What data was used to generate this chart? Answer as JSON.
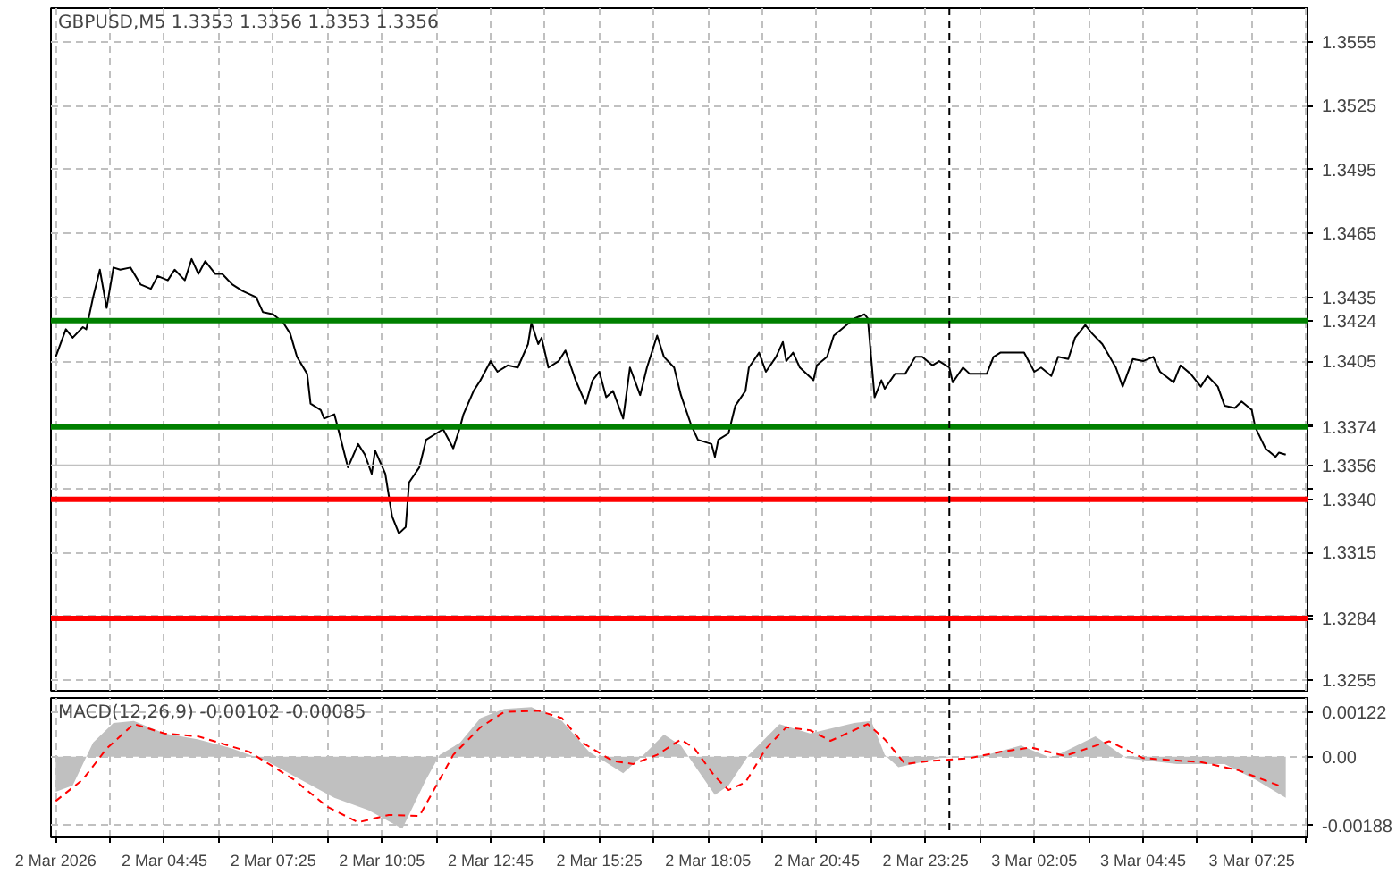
{
  "chart_data": [
    {
      "type": "line",
      "title": "GBPUSD,M5 1.3353 1.3356 1.3353 1.3356",
      "tick_labels": "y",
      "grid": true,
      "xlim": [
        "2026-03-02T01:58",
        "2026-03-03T08:47"
      ],
      "ylim": [
        1.325,
        1.3571
      ],
      "xticks": [
        {
          "value": "2026-03-02T02:05",
          "label": null
        },
        {
          "value": "2026-03-02T03:25",
          "label": null
        },
        {
          "value": "2026-03-02T04:45",
          "label": null
        },
        {
          "value": "2026-03-02T06:05",
          "label": null
        },
        {
          "value": "2026-03-02T07:25",
          "label": null
        },
        {
          "value": "2026-03-02T08:45",
          "label": null
        },
        {
          "value": "2026-03-02T10:05",
          "label": null
        },
        {
          "value": "2026-03-02T11:25",
          "label": null
        },
        {
          "value": "2026-03-02T12:45",
          "label": null
        },
        {
          "value": "2026-03-02T14:05",
          "label": null
        },
        {
          "value": "2026-03-02T15:25",
          "label": null
        },
        {
          "value": "2026-03-02T16:45",
          "label": null
        },
        {
          "value": "2026-03-02T18:05",
          "label": null
        },
        {
          "value": "2026-03-02T19:25",
          "label": null
        },
        {
          "value": "2026-03-02T20:45",
          "label": null
        },
        {
          "value": "2026-03-02T22:05",
          "label": null
        },
        {
          "value": "2026-03-02T23:25",
          "label": null
        },
        {
          "value": "2026-03-03T00:45",
          "label": null
        },
        {
          "value": "2026-03-03T02:05",
          "label": null
        },
        {
          "value": "2026-03-03T03:25",
          "label": null
        },
        {
          "value": "2026-03-03T04:45",
          "label": null
        },
        {
          "value": "2026-03-03T06:05",
          "label": null
        },
        {
          "value": "2026-03-03T07:25",
          "label": null
        },
        {
          "value": "2026-03-03T08:45",
          "label": null
        }
      ],
      "yticks": [
        {
          "value": 1.3555,
          "label": "1.3555"
        },
        {
          "value": 1.3525,
          "label": "1.3525"
        },
        {
          "value": 1.3495,
          "label": "1.3495"
        },
        {
          "value": 1.3465,
          "label": "1.3465"
        },
        {
          "value": 1.3435,
          "label": "1.3435"
        },
        {
          "value": 1.3405,
          "label": "1.3405"
        },
        {
          "value": 1.3375,
          "label": null
        },
        {
          "value": 1.3345,
          "label": null
        },
        {
          "value": 1.3315,
          "label": "1.3315"
        },
        {
          "value": 1.3285,
          "label": null
        },
        {
          "value": 1.3255,
          "label": "1.3255"
        }
      ],
      "ref_lines": [
        {
          "axis": "y",
          "value": 1.3424,
          "label": "1.3424",
          "color": "#008000",
          "line_style": "solid"
        },
        {
          "axis": "y",
          "value": 1.3374,
          "label": "1.3374",
          "color": "#008000",
          "line_style": "solid"
        },
        {
          "axis": "y",
          "value": 1.3356,
          "label": "1.3356",
          "color": "#c0c0c0",
          "line_style": "solid"
        },
        {
          "axis": "y",
          "value": 1.334,
          "label": "1.3340",
          "color": "#ff0000",
          "line_style": "solid"
        },
        {
          "axis": "y",
          "value": 1.3284,
          "label": "1.3284",
          "color": "#ff0000",
          "line_style": "solid"
        },
        {
          "axis": "x",
          "value": "2026-03-03T00:00",
          "label": null,
          "color": "#000000",
          "line_style": "dashed"
        }
      ],
      "series": [
        {
          "color": "#000000",
          "line_style": "solid",
          "x": [
            "2026-03-02T02:05",
            "2026-03-02T02:20",
            "2026-03-02T02:30",
            "2026-03-02T02:45",
            "2026-03-02T02:50",
            "2026-03-02T03:00",
            "2026-03-02T03:10",
            "2026-03-02T03:20",
            "2026-03-02T03:30",
            "2026-03-02T03:40",
            "2026-03-02T03:55",
            "2026-03-02T04:10",
            "2026-03-02T04:25",
            "2026-03-02T04:35",
            "2026-03-02T04:50",
            "2026-03-02T05:00",
            "2026-03-02T05:15",
            "2026-03-02T05:25",
            "2026-03-02T05:35",
            "2026-03-02T05:45",
            "2026-03-02T06:00",
            "2026-03-02T06:10",
            "2026-03-02T06:25",
            "2026-03-02T06:40",
            "2026-03-02T07:00",
            "2026-03-02T07:10",
            "2026-03-02T07:25",
            "2026-03-02T07:40",
            "2026-03-02T07:50",
            "2026-03-02T08:00",
            "2026-03-02T08:15",
            "2026-03-02T08:20",
            "2026-03-02T08:35",
            "2026-03-02T08:40",
            "2026-03-02T08:55",
            "2026-03-02T09:00",
            "2026-03-02T09:15",
            "2026-03-02T09:30",
            "2026-03-02T09:40",
            "2026-03-02T09:50",
            "2026-03-02T09:55",
            "2026-03-02T10:10",
            "2026-03-02T10:20",
            "2026-03-02T10:30",
            "2026-03-02T10:40",
            "2026-03-02T10:45",
            "2026-03-02T11:00",
            "2026-03-02T11:10",
            "2026-03-02T11:25",
            "2026-03-02T11:35",
            "2026-03-02T11:50",
            "2026-03-02T12:00",
            "2026-03-02T12:05",
            "2026-03-02T12:20",
            "2026-03-02T12:30",
            "2026-03-02T12:45",
            "2026-03-02T12:55",
            "2026-03-02T13:10",
            "2026-03-02T13:25",
            "2026-03-02T13:40",
            "2026-03-02T13:45",
            "2026-03-02T13:55",
            "2026-03-02T14:00",
            "2026-03-02T14:10",
            "2026-03-02T14:25",
            "2026-03-02T14:35",
            "2026-03-02T14:50",
            "2026-03-02T15:05",
            "2026-03-02T15:15",
            "2026-03-02T15:25",
            "2026-03-02T15:35",
            "2026-03-02T15:45",
            "2026-03-02T16:00",
            "2026-03-02T16:10",
            "2026-03-02T16:25",
            "2026-03-02T16:35",
            "2026-03-02T16:50",
            "2026-03-02T17:00",
            "2026-03-02T17:15",
            "2026-03-02T17:25",
            "2026-03-02T17:40",
            "2026-03-02T17:50",
            "2026-03-02T18:10",
            "2026-03-02T18:15",
            "2026-03-02T18:20",
            "2026-03-02T18:35",
            "2026-03-02T18:45",
            "2026-03-02T19:00",
            "2026-03-02T19:05",
            "2026-03-02T19:20",
            "2026-03-02T19:30",
            "2026-03-02T19:45",
            "2026-03-02T19:55",
            "2026-03-02T20:00",
            "2026-03-02T20:10",
            "2026-03-02T20:20",
            "2026-03-02T20:40",
            "2026-03-02T20:45",
            "2026-03-02T21:00",
            "2026-03-02T21:10",
            "2026-03-02T21:25",
            "2026-03-02T21:40",
            "2026-03-02T21:55",
            "2026-03-02T22:00",
            "2026-03-02T22:10",
            "2026-03-02T22:20",
            "2026-03-02T22:25",
            "2026-03-02T22:40",
            "2026-03-02T22:55",
            "2026-03-02T23:10",
            "2026-03-02T23:20",
            "2026-03-02T23:35",
            "2026-03-02T23:45",
            "2026-03-03T00:00",
            "2026-03-03T00:05",
            "2026-03-03T00:20",
            "2026-03-03T00:30",
            "2026-03-03T00:55",
            "2026-03-03T01:05",
            "2026-03-03T01:15",
            "2026-03-03T01:50",
            "2026-03-03T02:05",
            "2026-03-03T02:15",
            "2026-03-03T02:30",
            "2026-03-03T02:40",
            "2026-03-03T02:55",
            "2026-03-03T03:05",
            "2026-03-03T03:20",
            "2026-03-03T03:30",
            "2026-03-03T03:45",
            "2026-03-03T04:05",
            "2026-03-03T04:15",
            "2026-03-03T04:30",
            "2026-03-03T04:45",
            "2026-03-03T05:00",
            "2026-03-03T05:10",
            "2026-03-03T05:30",
            "2026-03-03T05:40",
            "2026-03-03T05:55",
            "2026-03-03T06:10",
            "2026-03-03T06:20",
            "2026-03-03T06:35",
            "2026-03-03T06:45",
            "2026-03-03T07:00",
            "2026-03-03T07:10",
            "2026-03-03T07:25",
            "2026-03-03T07:30",
            "2026-03-03T07:45",
            "2026-03-03T08:00",
            "2026-03-03T08:05",
            "2026-03-03T08:15"
          ],
          "values": [
            1.3407,
            1.342,
            1.3416,
            1.3421,
            1.342,
            1.3435,
            1.3448,
            1.343,
            1.3449,
            1.3448,
            1.3449,
            1.3441,
            1.3439,
            1.3445,
            1.3443,
            1.3448,
            1.3443,
            1.3453,
            1.3446,
            1.3452,
            1.3446,
            1.3446,
            1.3441,
            1.3438,
            1.3435,
            1.3428,
            1.3427,
            1.3423,
            1.3418,
            1.3407,
            1.3399,
            1.3385,
            1.3382,
            1.3378,
            1.338,
            1.3374,
            1.3355,
            1.3366,
            1.3361,
            1.3352,
            1.3363,
            1.3352,
            1.3332,
            1.3324,
            1.3327,
            1.3348,
            1.3355,
            1.3368,
            1.3371,
            1.3373,
            1.3364,
            1.3374,
            1.338,
            1.3391,
            1.3396,
            1.3405,
            1.34,
            1.3403,
            1.3402,
            1.3413,
            1.3423,
            1.3413,
            1.3416,
            1.3402,
            1.3405,
            1.341,
            1.3396,
            1.3385,
            1.3396,
            1.34,
            1.3388,
            1.3391,
            1.3378,
            1.3402,
            1.3389,
            1.3402,
            1.3417,
            1.3407,
            1.3402,
            1.3389,
            1.3375,
            1.3368,
            1.3366,
            1.336,
            1.3368,
            1.3371,
            1.3384,
            1.3391,
            1.3402,
            1.3409,
            1.34,
            1.3407,
            1.3414,
            1.3405,
            1.3409,
            1.3402,
            1.3396,
            1.3403,
            1.3407,
            1.3417,
            1.3421,
            1.3425,
            1.3427,
            1.3425,
            1.3388,
            1.3396,
            1.3392,
            1.3399,
            1.3399,
            1.3407,
            1.3407,
            1.3403,
            1.3405,
            1.3402,
            1.3395,
            1.3402,
            1.3399,
            1.3399,
            1.3407,
            1.3409,
            1.3409,
            1.34,
            1.3402,
            1.3398,
            1.3407,
            1.3406,
            1.3416,
            1.3422,
            1.3418,
            1.3413,
            1.3402,
            1.3393,
            1.3406,
            1.3405,
            1.3407,
            1.34,
            1.3395,
            1.3403,
            1.3399,
            1.3393,
            1.3398,
            1.3393,
            1.3384,
            1.3383,
            1.3386,
            1.3382,
            1.3374,
            1.3364,
            1.336,
            1.3362,
            1.3361
          ]
        }
      ]
    },
    {
      "type": "area",
      "title": "MACD(12,26,9) -0.00102 -0.00085",
      "grid": true,
      "xlim": [
        "2026-03-02T01:58",
        "2026-03-03T08:47"
      ],
      "ylim": [
        -0.0022,
        0.0016
      ],
      "xticks": [
        {
          "value": "2026-03-02T02:05",
          "label": "2 Mar 2026"
        },
        {
          "value": "2026-03-02T03:25",
          "label": null
        },
        {
          "value": "2026-03-02T04:45",
          "label": "2 Mar 04:45"
        },
        {
          "value": "2026-03-02T06:05",
          "label": null
        },
        {
          "value": "2026-03-02T07:25",
          "label": "2 Mar 07:25"
        },
        {
          "value": "2026-03-02T08:45",
          "label": null
        },
        {
          "value": "2026-03-02T10:05",
          "label": "2 Mar 10:05"
        },
        {
          "value": "2026-03-02T11:25",
          "label": null
        },
        {
          "value": "2026-03-02T12:45",
          "label": "2 Mar 12:45"
        },
        {
          "value": "2026-03-02T14:05",
          "label": null
        },
        {
          "value": "2026-03-02T15:25",
          "label": "2 Mar 15:25"
        },
        {
          "value": "2026-03-02T16:45",
          "label": null
        },
        {
          "value": "2026-03-02T18:05",
          "label": "2 Mar 18:05"
        },
        {
          "value": "2026-03-02T19:25",
          "label": null
        },
        {
          "value": "2026-03-02T20:45",
          "label": "2 Mar 20:45"
        },
        {
          "value": "2026-03-02T22:05",
          "label": null
        },
        {
          "value": "2026-03-02T23:25",
          "label": "2 Mar 23:25"
        },
        {
          "value": "2026-03-03T00:45",
          "label": null
        },
        {
          "value": "2026-03-03T02:05",
          "label": "3 Mar 02:05"
        },
        {
          "value": "2026-03-03T03:25",
          "label": null
        },
        {
          "value": "2026-03-03T04:45",
          "label": "3 Mar 04:45"
        },
        {
          "value": "2026-03-03T06:05",
          "label": null
        },
        {
          "value": "2026-03-03T07:25",
          "label": "3 Mar 07:25"
        },
        {
          "value": "2026-03-03T08:45",
          "label": null
        }
      ],
      "yticks": [
        {
          "value": 0.00122,
          "label": "0.00122"
        },
        {
          "value": 0,
          "label": "0.00"
        },
        {
          "value": -0.00188,
          "label": "-0.00188"
        }
      ],
      "ref_lines": [
        {
          "axis": "x",
          "value": "2026-03-03T00:00",
          "label": null,
          "color": "#000000",
          "line_style": "dashed"
        }
      ],
      "series": [
        {
          "color": "#c0c0c0",
          "x": [
            "2026-03-02T02:05",
            "2026-03-02T02:30",
            "2026-03-02T03:00",
            "2026-03-02T03:30",
            "2026-03-02T04:00",
            "2026-03-02T04:45",
            "2026-03-02T05:35",
            "2026-03-02T06:25",
            "2026-03-02T07:15",
            "2026-03-02T08:05",
            "2026-03-02T08:55",
            "2026-03-02T09:45",
            "2026-03-02T10:35",
            "2026-03-02T11:10",
            "2026-03-02T11:30",
            "2026-03-02T12:00",
            "2026-03-02T12:30",
            "2026-03-02T13:05",
            "2026-03-02T13:45",
            "2026-03-02T14:30",
            "2026-03-02T15:10",
            "2026-03-02T16:00",
            "2026-03-02T16:30",
            "2026-03-02T17:00",
            "2026-03-02T17:25",
            "2026-03-02T18:15",
            "2026-03-02T18:35",
            "2026-03-02T19:05",
            "2026-03-02T19:50",
            "2026-03-02T20:35",
            "2026-03-02T21:40",
            "2026-03-02T22:05",
            "2026-03-02T22:25",
            "2026-03-02T22:45",
            "2026-03-02T23:45",
            "2026-03-03T00:55",
            "2026-03-03T01:45",
            "2026-03-03T02:30",
            "2026-03-03T03:35",
            "2026-03-03T04:20",
            "2026-03-03T05:35",
            "2026-03-03T06:45",
            "2026-03-03T07:30",
            "2026-03-03T08:15"
          ],
          "values": [
            -0.00096,
            -0.00079,
            0.00038,
            0.00092,
            0.00097,
            0.00063,
            0.00047,
            0.00022,
            -0.00012,
            -0.00062,
            -0.00112,
            -0.00146,
            -0.00196,
            -0.00062,
            5e-05,
            0.00038,
            0.00105,
            0.0013,
            0.00135,
            0.00097,
            0.00013,
            -0.00045,
            5e-05,
            0.0006,
            0.0003,
            -0.00104,
            -0.00079,
            5e-05,
            0.00089,
            0.00063,
            0.00092,
            0.00097,
            5e-05,
            -0.00029,
            -4e-05,
            5e-05,
            0.0003,
            -4e-05,
            0.00055,
            -4e-05,
            -0.0002,
            -0.0002,
            -0.00062,
            -0.00112
          ]
        },
        {
          "type": "line",
          "color": "#ff0000",
          "line_style": "dashed",
          "x": [
            "2026-03-02T02:05",
            "2026-03-02T02:45",
            "2026-03-02T03:20",
            "2026-03-02T04:00",
            "2026-03-02T04:45",
            "2026-03-02T05:35",
            "2026-03-02T06:50",
            "2026-03-02T07:55",
            "2026-03-02T08:45",
            "2026-03-02T09:30",
            "2026-03-02T10:15",
            "2026-03-02T11:00",
            "2026-03-02T11:25",
            "2026-03-02T11:50",
            "2026-03-02T12:30",
            "2026-03-02T13:05",
            "2026-03-02T13:55",
            "2026-03-02T14:30",
            "2026-03-02T15:00",
            "2026-03-02T15:45",
            "2026-03-02T16:15",
            "2026-03-02T16:50",
            "2026-03-02T17:25",
            "2026-03-02T17:45",
            "2026-03-02T18:15",
            "2026-03-02T18:35",
            "2026-03-02T19:00",
            "2026-03-02T19:30",
            "2026-03-02T20:00",
            "2026-03-02T20:35",
            "2026-03-02T21:05",
            "2026-03-02T22:00",
            "2026-03-02T22:25",
            "2026-03-02T22:55",
            "2026-03-02T23:30",
            "2026-03-03T00:30",
            "2026-03-03T01:15",
            "2026-03-03T02:00",
            "2026-03-03T02:50",
            "2026-03-03T03:55",
            "2026-03-03T04:45",
            "2026-03-03T06:10",
            "2026-03-03T07:05",
            "2026-03-03T08:05"
          ],
          "values": [
            -0.00121,
            -0.00062,
            0.00022,
            0.00089,
            0.00063,
            0.00055,
            0.00013,
            -0.00062,
            -0.00137,
            -0.00179,
            -0.00159,
            -0.00162,
            -0.00079,
            5e-05,
            0.0008,
            0.00122,
            0.00125,
            0.00105,
            0.00038,
            -0.00012,
            -0.0002,
            5e-05,
            0.00047,
            0.00022,
            -0.00054,
            -0.00091,
            -0.0007,
            0.00022,
            0.0008,
            0.00072,
            0.00043,
            0.00089,
            0.00047,
            -0.0002,
            -0.00012,
            -4e-05,
            0.00013,
            0.00025,
            2e-05,
            0.00042,
            -4e-05,
            -0.00015,
            -0.00037,
            -0.00079
          ]
        }
      ]
    }
  ]
}
